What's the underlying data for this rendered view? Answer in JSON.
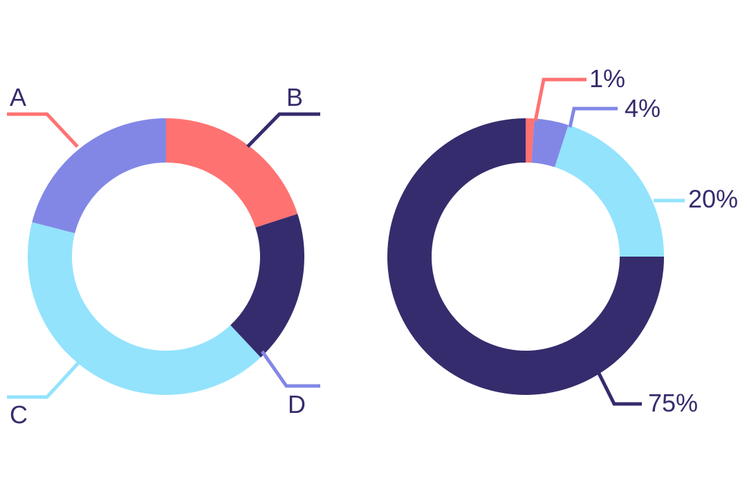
{
  "chart_data": [
    {
      "type": "donut",
      "legend": "none",
      "grid": false,
      "categories": [
        "A",
        "B",
        "C",
        "D"
      ],
      "values": [
        20,
        18,
        41,
        21
      ],
      "colors": [
        "#FF7272",
        "#352C6D",
        "#93E3FD",
        "#8287E6"
      ],
      "labels": [
        "A",
        "B",
        "C",
        "D"
      ]
    },
    {
      "type": "donut",
      "legend": "none",
      "grid": false,
      "categories": [
        "1%",
        "4%",
        "20%",
        "75%"
      ],
      "values": [
        1,
        4,
        20,
        75
      ],
      "colors": [
        "#FF7272",
        "#8287E6",
        "#93E3FD",
        "#352C6D"
      ],
      "labels": [
        "1%",
        "4%",
        "20%",
        "75%"
      ]
    }
  ],
  "colors": {
    "label_text": "#352C6D",
    "background": "#FFFFFF"
  }
}
